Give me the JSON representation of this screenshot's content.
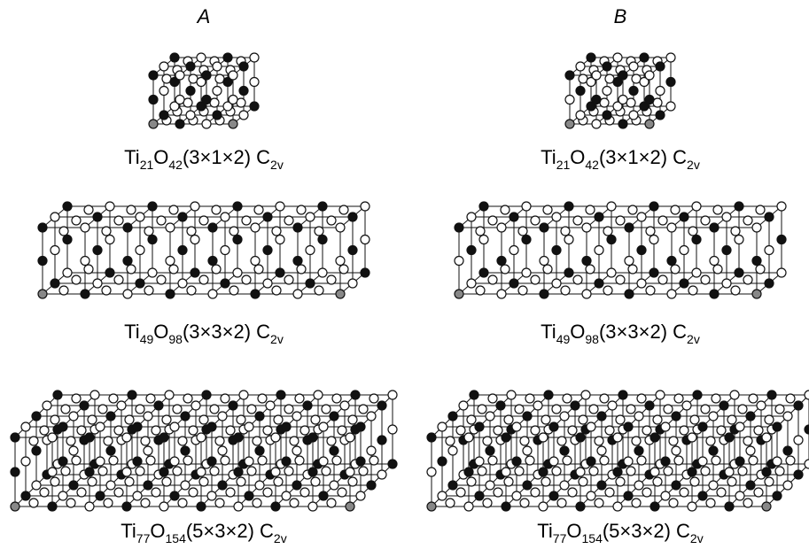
{
  "columns": [
    {
      "label": "A",
      "panels": [
        {
          "caption": [
            {
              "text": "Ti"
            },
            {
              "sub": "21"
            },
            {
              "text": "O"
            },
            {
              "sub": "42"
            },
            {
              "text": "(3×1×2) C"
            },
            {
              "sub": "2v"
            }
          ]
        },
        {
          "caption": [
            {
              "text": "Ti"
            },
            {
              "sub": "49"
            },
            {
              "text": "O"
            },
            {
              "sub": "98"
            },
            {
              "text": "(3×3×2) C"
            },
            {
              "sub": "2v"
            }
          ]
        },
        {
          "caption": [
            {
              "text": "Ti"
            },
            {
              "sub": "77"
            },
            {
              "text": "O"
            },
            {
              "sub": "154"
            },
            {
              "text": "(5×3×2) C"
            },
            {
              "sub": "2v"
            }
          ]
        }
      ]
    },
    {
      "label": "B",
      "panels": [
        {
          "caption": [
            {
              "text": "Ti"
            },
            {
              "sub": "21"
            },
            {
              "text": "O"
            },
            {
              "sub": "42"
            },
            {
              "text": "(3×1×2) C"
            },
            {
              "sub": "2v"
            }
          ]
        },
        {
          "caption": [
            {
              "text": "Ti"
            },
            {
              "sub": "49"
            },
            {
              "text": "O"
            },
            {
              "sub": "98"
            },
            {
              "text": "(3×3×2) C"
            },
            {
              "sub": "2v"
            }
          ]
        },
        {
          "caption": [
            {
              "text": "Ti"
            },
            {
              "sub": "77"
            },
            {
              "text": "O"
            },
            {
              "sub": "154"
            },
            {
              "text": "(5×3×2) C"
            },
            {
              "sub": "2v"
            }
          ]
        }
      ]
    }
  ]
}
